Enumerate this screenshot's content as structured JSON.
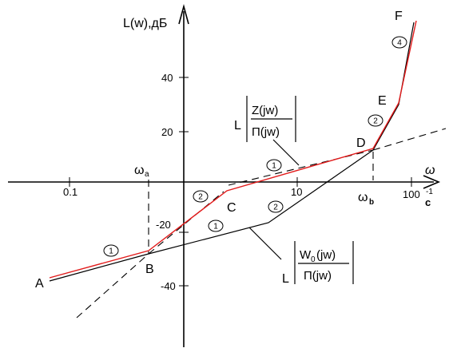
{
  "axes": {
    "y_label": "L(w),дБ",
    "x_label": "ω",
    "y_ticks": [
      "40",
      "20",
      "-20",
      "-40"
    ],
    "x_ticks": [
      "0.1",
      "10",
      "100"
    ],
    "x_unit": "c",
    "x_unit_power": "-1"
  },
  "points": {
    "A": "A",
    "B": "B",
    "C": "C",
    "D": "D",
    "E": "E",
    "F": "F"
  },
  "frequencies": {
    "omega_a": "ω",
    "omega_a_sub": "a",
    "omega_b": "ω",
    "omega_b_sub": "b"
  },
  "slope_marks": {
    "seg_AB": "1",
    "seg_BC": "2",
    "seg_CD": "1",
    "seg_DE": "2",
    "seg_EF": "4",
    "seg_low": "1",
    "seg_mid": "2"
  },
  "labels": {
    "top_formula_prefix": "L",
    "top_numerator": "Z(jw)",
    "top_denominator": "П(jw)",
    "bottom_formula_prefix": "L",
    "bottom_numerator_main": "W",
    "bottom_numerator_sub": "0",
    "bottom_numerator_tail": "(jw)",
    "bottom_denominator": "П(jw)"
  },
  "colors": {
    "desired_curve": "#e21b1b",
    "lines": "#000000"
  }
}
